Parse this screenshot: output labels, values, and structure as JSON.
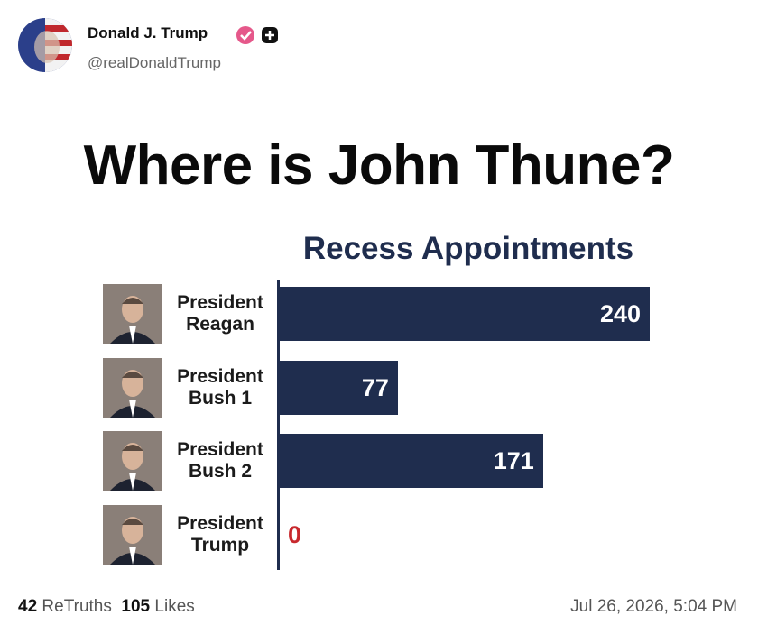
{
  "post": {
    "author": "Donald J. Trump",
    "handle": "@realDonaldTrump",
    "stats": {
      "retruths": {
        "count": 42,
        "label": "ReTruths"
      },
      "likes": {
        "count": 105,
        "label": "Likes"
      }
    },
    "date": "Jul 26, 2026, 5:04 PM"
  },
  "chart_data": {
    "type": "hbar",
    "headline": "Where is John Thune?",
    "title": "Recess Appointments",
    "categories": [
      "President\nReagan",
      "President\nBush 1",
      "President\nBush 2",
      "President\nTrump"
    ],
    "values": [
      240,
      77,
      171,
      0
    ],
    "color": "#1f2d4e",
    "label_color": "#ffffff",
    "outside_label_color": "#c8282d"
  }
}
